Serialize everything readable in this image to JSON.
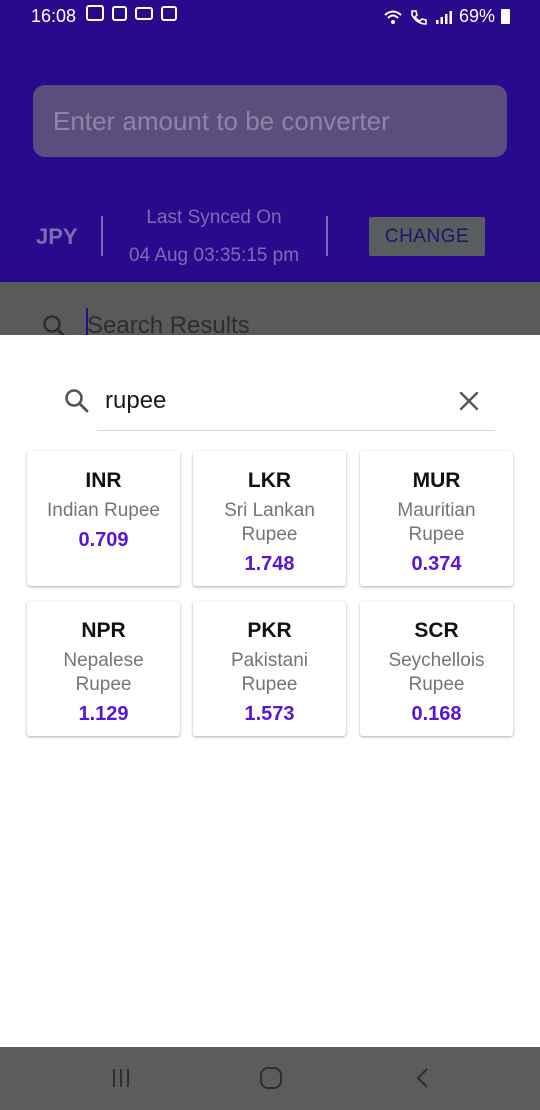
{
  "status_bar": {
    "time": "16:08",
    "battery": "69%"
  },
  "converter": {
    "amount_placeholder": "Enter amount to be converter",
    "base_currency": "JPY",
    "sync_label": "Last Synced On",
    "sync_date": "04 Aug 03:35:15 pm",
    "change_label": "CHANGE",
    "search_results_placeholder": "Search Results"
  },
  "modal": {
    "search_value": "rupee",
    "results": [
      {
        "code": "INR",
        "name": "Indian Rupee",
        "rate": "0.709"
      },
      {
        "code": "LKR",
        "name": "Sri Lankan Rupee",
        "rate": "1.748"
      },
      {
        "code": "MUR",
        "name": "Mauritian Rupee",
        "rate": "0.374"
      },
      {
        "code": "NPR",
        "name": "Nepalese Rupee",
        "rate": "1.129"
      },
      {
        "code": "PKR",
        "name": "Pakistani Rupee",
        "rate": "1.573"
      },
      {
        "code": "SCR",
        "name": "Seychellois Rupee",
        "rate": "0.168"
      }
    ]
  },
  "colors": {
    "primary": "#2a0a8c",
    "accent_rate": "#5a14d6"
  },
  "icons": {
    "search": "search-icon",
    "clear": "close-icon",
    "nav_recents": "recent-apps-icon",
    "nav_home": "home-icon",
    "nav_back": "back-icon"
  }
}
